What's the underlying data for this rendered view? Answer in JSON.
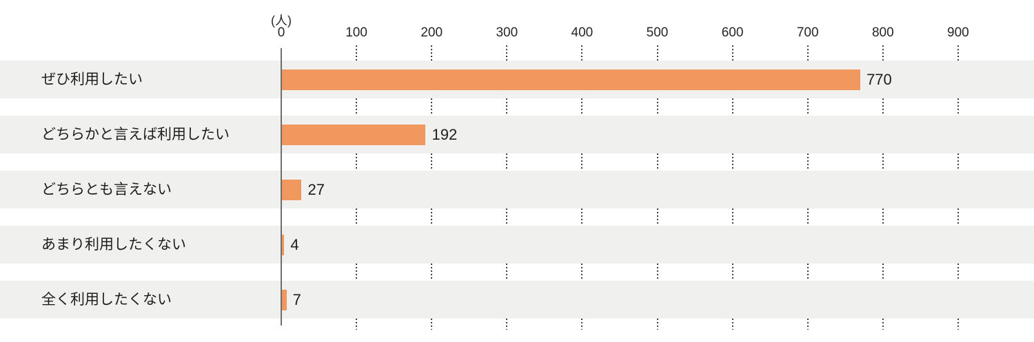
{
  "chart_data": {
    "type": "bar",
    "orientation": "horizontal",
    "title": "",
    "unit": "(人)",
    "categories": [
      "ぜひ利用したい",
      "どちらかと言えば利用したい",
      "どちらとも言えない",
      "あまり利用したくない",
      "全く利用したくない"
    ],
    "values": [
      770,
      192,
      27,
      4,
      7
    ],
    "x_ticks": [
      0,
      100,
      200,
      300,
      400,
      500,
      600,
      700,
      800,
      900
    ],
    "xlim": [
      0,
      900
    ],
    "legend": "none",
    "grid": "dotted-vertical-at-ticks",
    "colors": {
      "bar": "#f0985e",
      "row_band": "#f0f0ef",
      "grid_dots": "#3d3d3d",
      "axis_line": "#6e6e6e",
      "text": "#1d1d1d"
    }
  }
}
